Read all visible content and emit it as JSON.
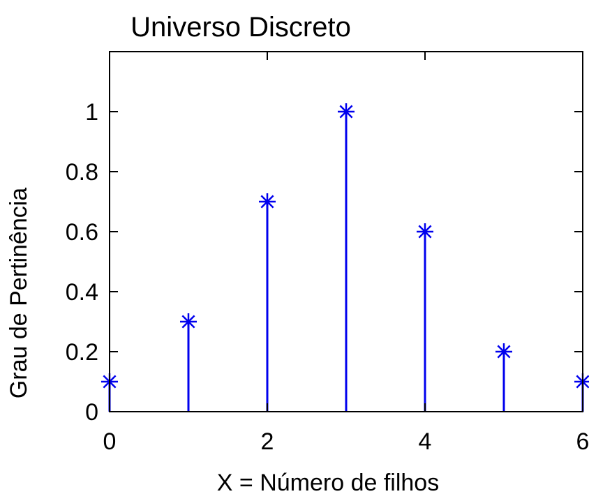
{
  "chart_data": {
    "type": "stem",
    "title": "Universo Discreto",
    "xlabel": "X = Número de filhos",
    "ylabel": "Grau de Pertinência",
    "x": [
      0,
      1,
      2,
      3,
      4,
      5,
      6
    ],
    "values": [
      0.1,
      0.3,
      0.7,
      1.0,
      0.6,
      0.2,
      0.1
    ],
    "xlim": [
      0,
      6
    ],
    "ylim": [
      0,
      1.2
    ],
    "xticks": [
      0,
      2,
      4,
      6
    ],
    "xtick_labels": [
      "0",
      "2",
      "4",
      "6"
    ],
    "yticks": [
      0,
      0.2,
      0.4,
      0.6,
      0.8,
      1
    ],
    "ytick_labels": [
      "0",
      "0.2",
      "0.4",
      "0.6",
      "0.8",
      "1"
    ],
    "marker": "asterisk",
    "color": "#0000ee",
    "grid": false,
    "legend": "none"
  }
}
